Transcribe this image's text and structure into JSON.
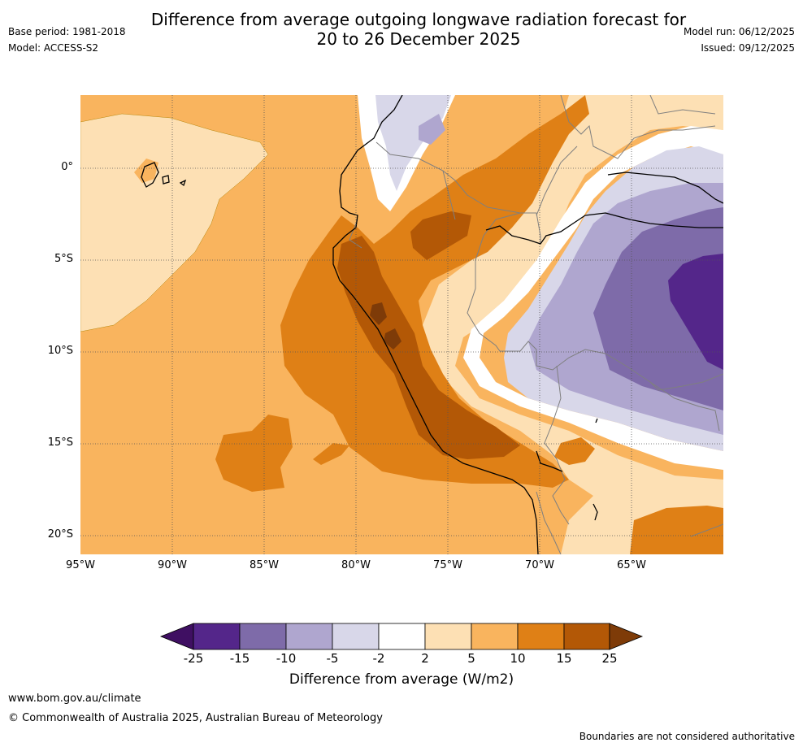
{
  "title_line1": "Difference from average outgoing longwave radiation forecast for",
  "title_line2": "20 to 26 December 2025",
  "base_period": "Base period: 1981-2018",
  "model": "Model: ACCESS-S2",
  "model_run": "Model run: 06/12/2025",
  "issued": "Issued: 09/12/2025",
  "lat_labels": [
    "0°",
    "5°S",
    "10°S",
    "15°S",
    "20°S"
  ],
  "lon_labels": [
    "95°W",
    "90°W",
    "85°W",
    "80°W",
    "75°W",
    "70°W",
    "65°W"
  ],
  "colorbar": {
    "title": "Difference from average (W/m2)",
    "ticks": [
      "-25",
      "-15",
      "-10",
      "-5",
      "-2",
      "2",
      "5",
      "10",
      "15",
      "25"
    ],
    "colors": [
      "#3f0f62",
      "#54268a",
      "#7e6ba9",
      "#afa6cf",
      "#d8d7e9",
      "#ffffff",
      "#fde0b4",
      "#f9b45e",
      "#df8016",
      "#b35806",
      "#7e3b08"
    ]
  },
  "website": "www.bom.gov.au/climate",
  "copyright": "© Commonwealth of Australia 2025, Australian Bureau of Meteorology",
  "disclaimer": "Boundaries are not considered authoritative"
}
